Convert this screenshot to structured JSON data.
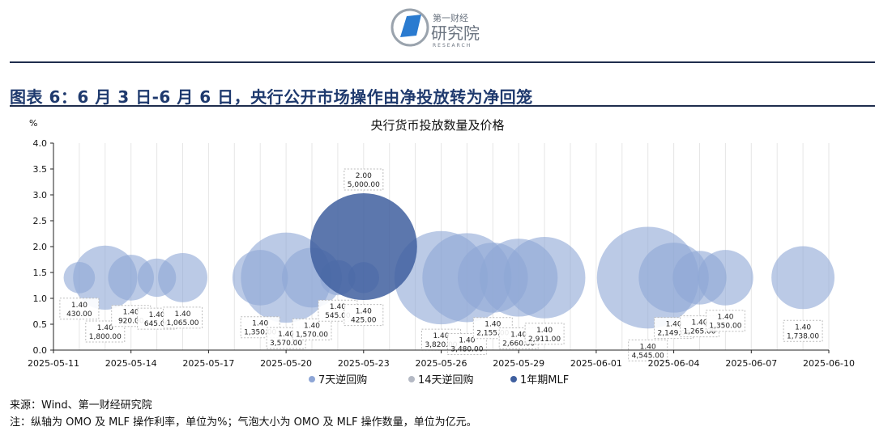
{
  "header": {
    "logo_text_top": "第一财经",
    "logo_text_main": "研究院",
    "logo_text_sub": "RESEARCH",
    "figure_title": "图表 6：6 月 3 日-6 月 6 日，央行公开市场操作由净投放转为净回笼"
  },
  "chart_data": {
    "type": "bubble",
    "title": "央行货币投放数量及价格",
    "ylabel": "%",
    "ylim": [
      0,
      4.0
    ],
    "yticks": [
      "0.0",
      "0.5",
      "1.0",
      "1.5",
      "2.0",
      "2.5",
      "3.0",
      "3.5",
      "4.0"
    ],
    "xlim": [
      "2025-05-11",
      "2025-06-10"
    ],
    "xticks": [
      "2025-05-11",
      "2025-05-14",
      "2025-05-17",
      "2025-05-20",
      "2025-05-23",
      "2025-05-26",
      "2025-05-29",
      "2025-06-01",
      "2025-06-04",
      "2025-06-07",
      "2025-06-10"
    ],
    "grid": "vertical daily lines",
    "legend_position": "bottom",
    "size_unit": "亿元",
    "series": [
      {
        "name": "7天逆回购",
        "color": "#8ea6d6",
        "points": [
          {
            "date": "2025-05-12",
            "rate": 1.4,
            "amount": 430.0,
            "label_rate": "1.40",
            "label_amount": "430.00"
          },
          {
            "date": "2025-05-13",
            "rate": 1.4,
            "amount": 1800.0,
            "label_rate": "1.40",
            "label_amount": "1,800.00"
          },
          {
            "date": "2025-05-14",
            "rate": 1.4,
            "amount": 920.0,
            "label_rate": "1.40",
            "label_amount": "920.00"
          },
          {
            "date": "2025-05-15",
            "rate": 1.4,
            "amount": 645.0,
            "label_rate": "1.40",
            "label_amount": "645.00"
          },
          {
            "date": "2025-05-16",
            "rate": 1.4,
            "amount": 1065.0,
            "label_rate": "1.40",
            "label_amount": "1,065.00"
          },
          {
            "date": "2025-05-19",
            "rate": 1.4,
            "amount": 1350.0,
            "label_rate": "1.40",
            "label_amount": "1,350.00"
          },
          {
            "date": "2025-05-20",
            "rate": 1.4,
            "amount": 3570.0,
            "label_rate": "1.40",
            "label_amount": "3,570.00"
          },
          {
            "date": "2025-05-21",
            "rate": 1.4,
            "amount": 1570.0,
            "label_rate": "1.40",
            "label_amount": "1,570.00"
          },
          {
            "date": "2025-05-22",
            "rate": 1.4,
            "amount": 545.0,
            "label_rate": "1.40",
            "label_amount": "545.00"
          },
          {
            "date": "2025-05-23",
            "rate": 1.4,
            "amount": 425.0,
            "label_rate": "1.40",
            "label_amount": "425.00"
          },
          {
            "date": "2025-05-26",
            "rate": 1.4,
            "amount": 3820.0,
            "label_rate": "1.40",
            "label_amount": "3,820.00"
          },
          {
            "date": "2025-05-27",
            "rate": 1.4,
            "amount": 3480.0,
            "label_rate": "1.40",
            "label_amount": "3,480.00"
          },
          {
            "date": "2025-05-28",
            "rate": 1.4,
            "amount": 2155.0,
            "label_rate": "1.40",
            "label_amount": "2,155.00"
          },
          {
            "date": "2025-05-29",
            "rate": 1.4,
            "amount": 2660.0,
            "label_rate": "1.40",
            "label_amount": "2,660.00"
          },
          {
            "date": "2025-05-30",
            "rate": 1.4,
            "amount": 2911.0,
            "label_rate": "1.40",
            "label_amount": "2,911.00"
          },
          {
            "date": "2025-06-03",
            "rate": 1.4,
            "amount": 4545.0,
            "label_rate": "1.40",
            "label_amount": "4,545.00"
          },
          {
            "date": "2025-06-04",
            "rate": 1.4,
            "amount": 2149.0,
            "label_rate": "1.40",
            "label_amount": "2,149.00"
          },
          {
            "date": "2025-06-05",
            "rate": 1.4,
            "amount": 1265.0,
            "label_rate": "1.40",
            "label_amount": "1,265.00"
          },
          {
            "date": "2025-06-06",
            "rate": 1.4,
            "amount": 1350.0,
            "label_rate": "1.40",
            "label_amount": "1,350.00"
          },
          {
            "date": "2025-06-09",
            "rate": 1.4,
            "amount": 1738.0,
            "label_rate": "1.40",
            "label_amount": "1,738.00"
          }
        ]
      },
      {
        "name": "14天逆回购",
        "color": "#b4b9c4",
        "points": []
      },
      {
        "name": "1年期MLF",
        "color": "#3f5f9f",
        "points": [
          {
            "date": "2025-05-23",
            "rate": 2.0,
            "amount": 5000.0,
            "label_rate": "2.00",
            "label_amount": "5,000.00"
          }
        ]
      }
    ]
  },
  "footer": {
    "source": "来源：Wind、第一财经研究院",
    "note": "注：纵轴为 OMO 及 MLF 操作利率，单位为%；气泡大小为 OMO 及 MLF 操作数量，单位为亿元。"
  }
}
